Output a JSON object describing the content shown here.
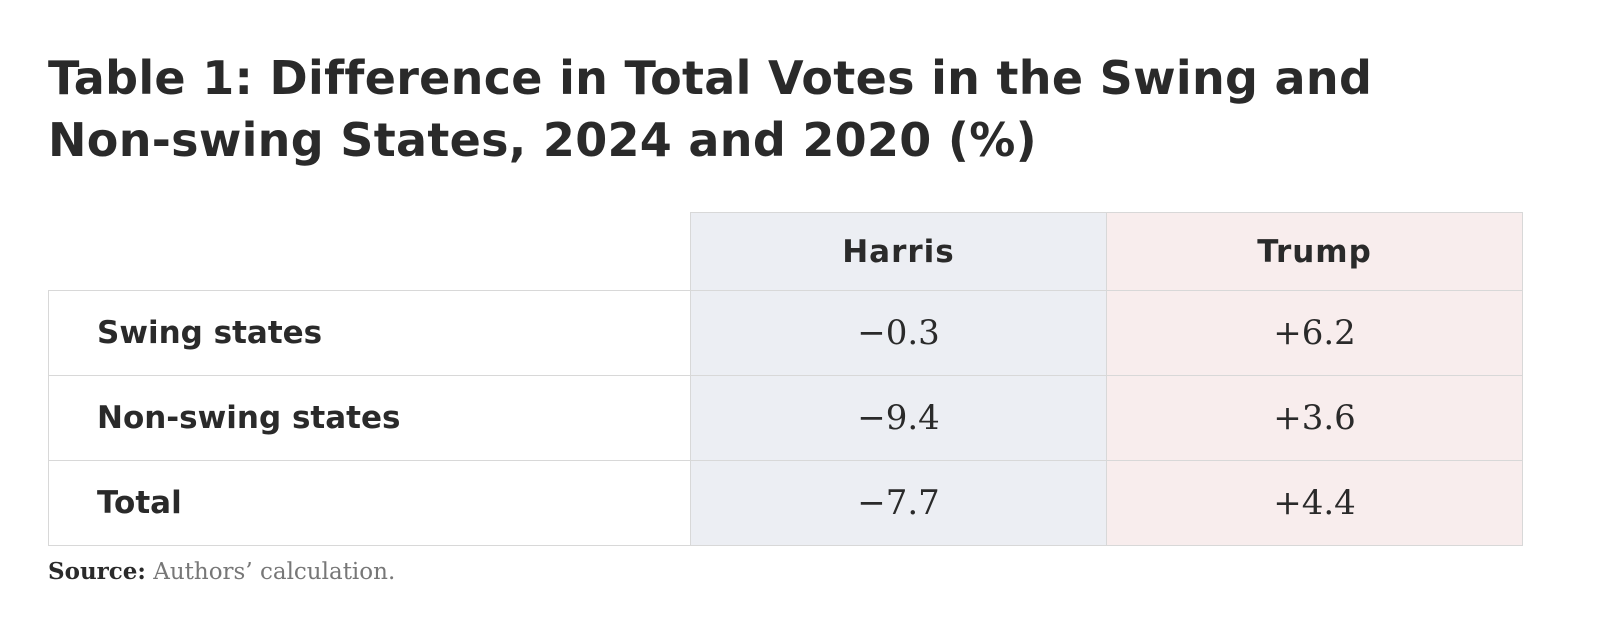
{
  "header": {
    "title_lines": [
      "Table 1: Difference in Total Votes in the Swing and",
      "Non-swing States, 2024 and 2020 (%)"
    ]
  },
  "table": {
    "columns": [
      "Harris",
      "Trump"
    ],
    "rows": [
      [
        "Swing states",
        "−0.3",
        "+6.2"
      ],
      [
        "Non-swing states",
        "−9.4",
        "+3.6"
      ],
      [
        "Total",
        "−7.7",
        "+4.4"
      ]
    ]
  },
  "source": {
    "label": "Source:",
    "text": "Authors’ calculation."
  }
}
